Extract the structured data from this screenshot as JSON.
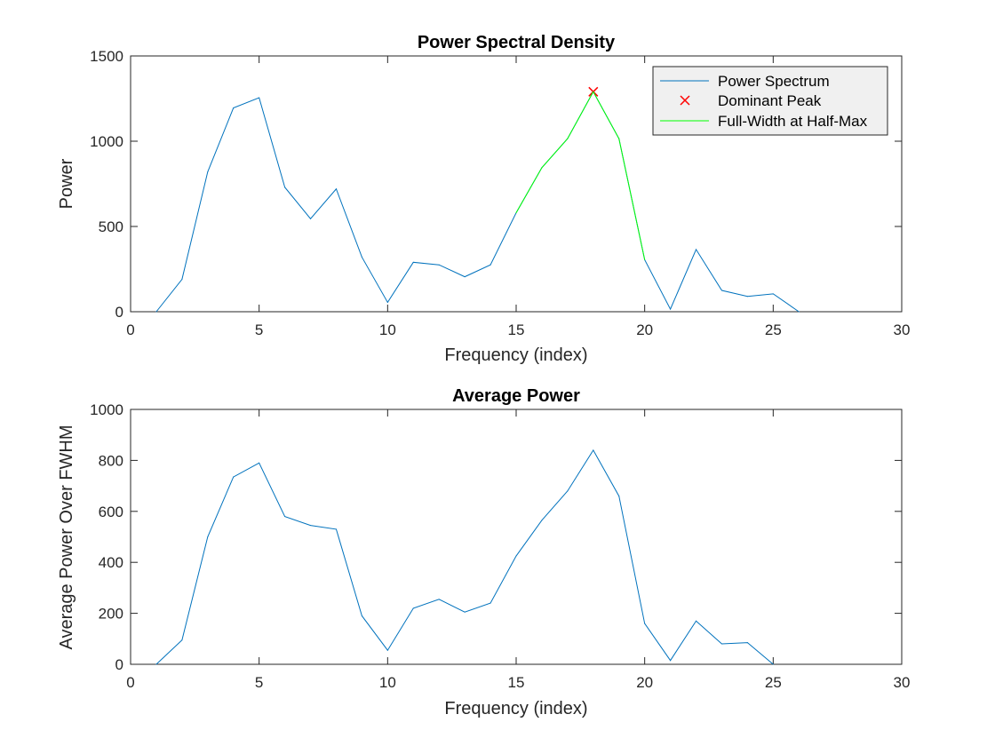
{
  "colors": {
    "series": "#0072BD",
    "peak": "#FF0000",
    "fwhm": "#00FF00",
    "axis": "#262626"
  },
  "chart_data": [
    {
      "type": "line",
      "title": "Power Spectral Density",
      "xlabel": "Frequency (index)",
      "ylabel": "Power",
      "xlim": [
        0,
        30
      ],
      "ylim": [
        0,
        1500
      ],
      "xticks": [
        0,
        5,
        10,
        15,
        20,
        25,
        30
      ],
      "yticks": [
        0,
        500,
        1000,
        1500
      ],
      "grid": false,
      "legend_position": "top-right",
      "series": [
        {
          "name": "Power Spectrum",
          "kind": "line",
          "color": "#0072BD",
          "x": [
            1,
            2,
            3,
            4,
            5,
            6,
            7,
            8,
            9,
            10,
            11,
            12,
            13,
            14,
            15,
            16,
            17,
            18,
            19,
            20,
            21,
            22,
            23,
            24,
            25,
            26
          ],
          "y": [
            0,
            190,
            820,
            1195,
            1255,
            730,
            545,
            720,
            320,
            55,
            290,
            275,
            205,
            275,
            580,
            845,
            1015,
            1290,
            1015,
            305,
            15,
            365,
            125,
            90,
            105,
            0
          ]
        },
        {
          "name": "Dominant Peak",
          "kind": "marker",
          "color": "#FF0000",
          "x": [
            18
          ],
          "y": [
            1290
          ]
        },
        {
          "name": "Full-Width at Half-Max",
          "kind": "line",
          "color": "#00FF00",
          "x": [
            15,
            16,
            17,
            18,
            19,
            20
          ],
          "y": [
            580,
            845,
            1015,
            1290,
            1015,
            305
          ]
        }
      ]
    },
    {
      "type": "line",
      "title": "Average Power",
      "xlabel": "Frequency (index)",
      "ylabel": "Average Power Over FWHM",
      "xlim": [
        0,
        30
      ],
      "ylim": [
        0,
        1000
      ],
      "xticks": [
        0,
        5,
        10,
        15,
        20,
        25,
        30
      ],
      "yticks": [
        0,
        200,
        400,
        600,
        800,
        1000
      ],
      "grid": false,
      "series": [
        {
          "kind": "line",
          "color": "#0072BD",
          "x": [
            1,
            2,
            3,
            4,
            5,
            6,
            7,
            8,
            9,
            10,
            11,
            12,
            13,
            14,
            15,
            16,
            17,
            18,
            19,
            20,
            21,
            22,
            23,
            24,
            25
          ],
          "y": [
            0,
            95,
            500,
            735,
            790,
            580,
            545,
            530,
            190,
            55,
            220,
            255,
            205,
            240,
            425,
            565,
            680,
            840,
            660,
            160,
            15,
            170,
            80,
            85,
            0
          ]
        }
      ]
    }
  ]
}
